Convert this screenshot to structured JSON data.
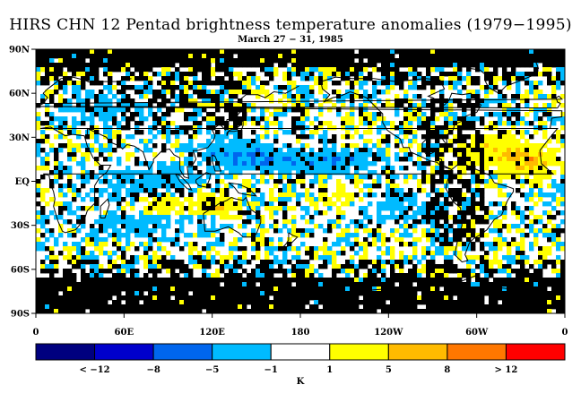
{
  "title": "HIRS CHN 12 Pentad brightness temperature anomalies (1979−1995)",
  "subtitle": "March 27 − 31, 1985",
  "lat_labels": [
    "90N",
    "60N",
    "30N",
    "EQ",
    "30S",
    "60S",
    "90S"
  ],
  "lon_labels": [
    "0",
    "60E",
    "120E",
    "180",
    "120W",
    "60W",
    "0"
  ],
  "colorbar": {
    "unit": "K",
    "boundary_labels": [
      "< −12",
      "−8",
      "−5",
      "−1",
      "1",
      "5",
      "8",
      "> 12"
    ],
    "colors": [
      "#00007f",
      "#0000cc",
      "#0066ee",
      "#00bbff",
      "#ffffff",
      "#ffff00",
      "#ffbb00",
      "#ff7700",
      "#ff0000"
    ]
  },
  "map_colors": {
    "missing": "#000000",
    "neutral": "#ffffff",
    "coast": "#000000"
  }
}
